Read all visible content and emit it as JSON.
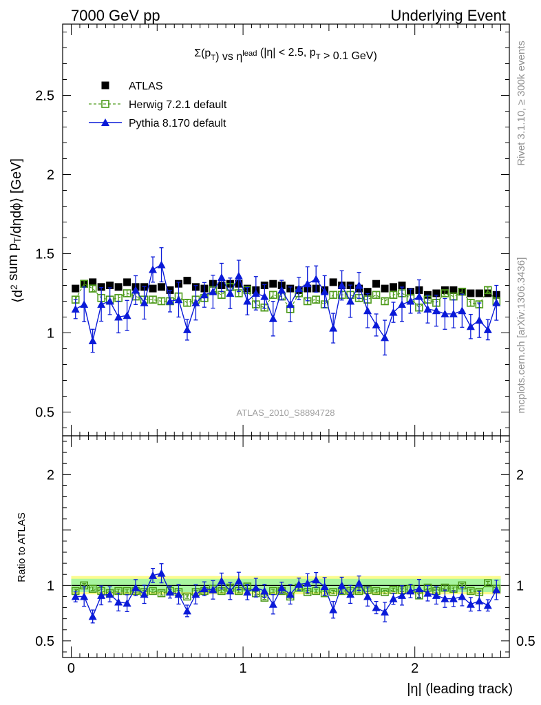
{
  "header": {
    "left": "7000 GeV pp",
    "right": "Underlying Event"
  },
  "side_text": {
    "rivet": "Rivet 3.1.10, ≥ 300k events",
    "mcplots": "mcplots.cern.ch [arXiv:1306.3436]"
  },
  "colors": {
    "atlas": "#000000",
    "herwig": "#4d9a1a",
    "pythia": "#0a1ad8",
    "band_outer": "#fbfb8e",
    "band_inner": "#a8f5a0"
  },
  "chart_data": [
    {
      "type": "scatter",
      "panel": "main",
      "title": "Σ(p_T) vs η^lead (|η| < 2.5, p_T > 0.1 GeV)",
      "ylabel": "⟨d² sum p_T/dηdϕ⟩ [GeV]",
      "watermark": "ATLAS_2010_S8894728",
      "xlim": [
        -0.05,
        2.55
      ],
      "ylim": [
        0.35,
        2.95
      ],
      "y_ticks": [
        0.5,
        1,
        1.5,
        2,
        2.5
      ],
      "legend_position": "top-left",
      "x": [
        0.025,
        0.075,
        0.125,
        0.175,
        0.225,
        0.275,
        0.325,
        0.375,
        0.425,
        0.475,
        0.525,
        0.575,
        0.625,
        0.675,
        0.725,
        0.775,
        0.825,
        0.875,
        0.925,
        0.975,
        1.025,
        1.075,
        1.125,
        1.175,
        1.225,
        1.275,
        1.325,
        1.375,
        1.425,
        1.475,
        1.525,
        1.575,
        1.625,
        1.675,
        1.725,
        1.775,
        1.825,
        1.875,
        1.925,
        1.975,
        2.025,
        2.075,
        2.125,
        2.175,
        2.225,
        2.275,
        2.325,
        2.375,
        2.425,
        2.475
      ],
      "series": [
        {
          "name": "ATLAS",
          "marker": "square",
          "values": [
            1.28,
            1.31,
            1.32,
            1.29,
            1.3,
            1.29,
            1.32,
            1.29,
            1.29,
            1.28,
            1.29,
            1.27,
            1.31,
            1.33,
            1.29,
            1.28,
            1.31,
            1.3,
            1.31,
            1.31,
            1.28,
            1.27,
            1.3,
            1.31,
            1.3,
            1.28,
            1.27,
            1.28,
            1.28,
            1.27,
            1.32,
            1.3,
            1.3,
            1.28,
            1.26,
            1.31,
            1.28,
            1.29,
            1.3,
            1.26,
            1.27,
            1.24,
            1.25,
            1.27,
            1.27,
            1.26,
            1.25,
            1.25,
            1.25,
            1.24
          ]
        },
        {
          "name": "Herwig 7.2.1 default",
          "marker": "open-square",
          "values": [
            1.21,
            1.31,
            1.28,
            1.22,
            1.21,
            1.22,
            1.25,
            1.23,
            1.21,
            1.21,
            1.2,
            1.2,
            1.23,
            1.19,
            1.21,
            1.22,
            1.27,
            1.24,
            1.29,
            1.25,
            1.27,
            1.18,
            1.16,
            1.24,
            1.23,
            1.15,
            1.25,
            1.2,
            1.21,
            1.18,
            1.24,
            1.24,
            1.24,
            1.22,
            1.21,
            1.24,
            1.2,
            1.24,
            1.25,
            1.22,
            1.16,
            1.21,
            1.19,
            1.25,
            1.23,
            1.26,
            1.19,
            1.18,
            1.27,
            1.2
          ]
        },
        {
          "name": "Pythia 8.170 default",
          "marker": "triangle",
          "values": [
            1.15,
            1.18,
            0.95,
            1.18,
            1.2,
            1.1,
            1.11,
            1.27,
            1.19,
            1.4,
            1.43,
            1.2,
            1.21,
            1.02,
            1.19,
            1.24,
            1.26,
            1.35,
            1.25,
            1.36,
            1.2,
            1.25,
            1.23,
            1.09,
            1.27,
            1.18,
            1.28,
            1.31,
            1.34,
            1.26,
            1.03,
            1.3,
            1.2,
            1.3,
            1.14,
            1.05,
            0.97,
            1.13,
            1.18,
            1.2,
            1.23,
            1.15,
            1.14,
            1.12,
            1.12,
            1.14,
            1.04,
            1.08,
            1.02,
            1.19
          ]
        }
      ]
    },
    {
      "type": "scatter",
      "panel": "ratio",
      "xlabel": "|η| (leading track)",
      "ylabel": "Ratio to ATLAS",
      "xlim": [
        -0.05,
        2.55
      ],
      "ylim": [
        0.35,
        2.35
      ],
      "y_ticks": [
        0.5,
        1,
        2
      ],
      "x_ticks": [
        0,
        1,
        2
      ],
      "series": [
        {
          "name": "Herwig 7.2.1 default",
          "marker": "open-square",
          "values": [
            0.95,
            1.0,
            0.97,
            0.95,
            0.93,
            0.95,
            0.95,
            0.95,
            0.94,
            0.95,
            0.93,
            0.95,
            0.94,
            0.9,
            0.94,
            0.95,
            0.97,
            0.95,
            0.98,
            0.95,
            0.99,
            0.93,
            0.89,
            0.95,
            0.95,
            0.9,
            0.98,
            0.94,
            0.95,
            0.93,
            0.94,
            0.95,
            0.95,
            0.95,
            0.96,
            0.95,
            0.94,
            0.96,
            0.96,
            0.97,
            0.91,
            0.98,
            0.95,
            0.98,
            0.97,
            1.0,
            0.95,
            0.94,
            1.02,
            0.97
          ]
        },
        {
          "name": "Pythia 8.170 default",
          "marker": "triangle",
          "values": [
            0.9,
            0.9,
            0.72,
            0.91,
            0.92,
            0.85,
            0.84,
            0.98,
            0.92,
            1.09,
            1.11,
            0.94,
            0.92,
            0.77,
            0.92,
            0.97,
            0.96,
            1.04,
            0.95,
            1.04,
            0.94,
            0.98,
            0.95,
            0.83,
            0.98,
            0.92,
            1.01,
            1.02,
            1.05,
            0.99,
            0.78,
            1.0,
            0.92,
            1.02,
            0.9,
            0.8,
            0.76,
            0.88,
            0.91,
            0.95,
            0.97,
            0.93,
            0.91,
            0.88,
            0.88,
            0.9,
            0.83,
            0.86,
            0.82,
            0.96
          ]
        }
      ]
    }
  ]
}
